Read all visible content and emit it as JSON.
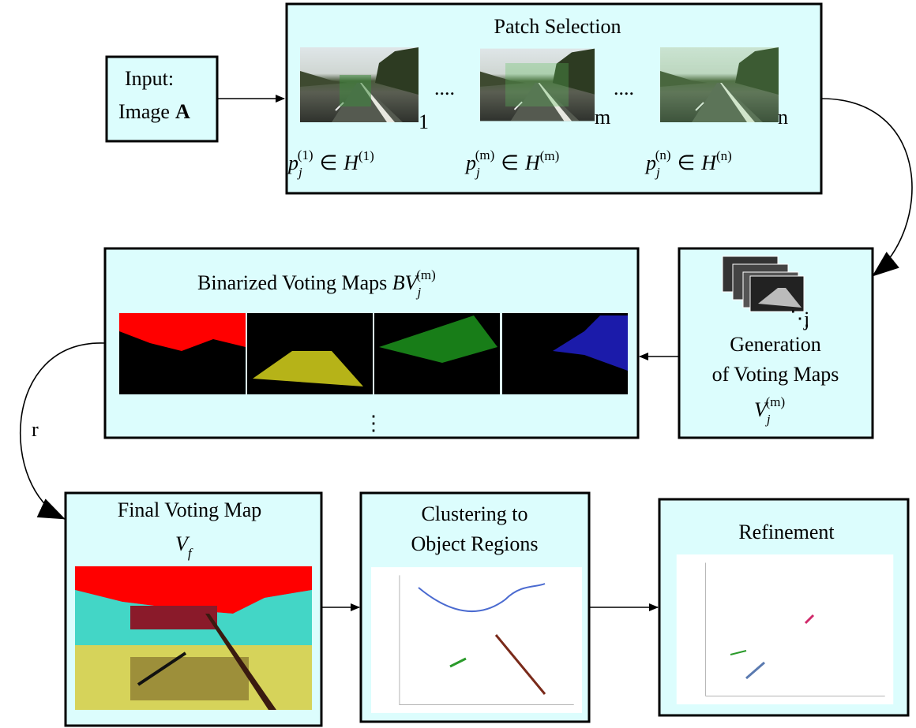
{
  "input": {
    "line1": "Input:",
    "line2": "Image",
    "line2_bold": "A"
  },
  "patch_selection": {
    "title": "Patch Selection",
    "ellipsis": [
      "....",
      "...."
    ],
    "scales": [
      {
        "label": "1",
        "formula": {
          "base": "p",
          "sub": "j",
          "sup": "(1)",
          "rel": "∈",
          "set": "H",
          "set_sup": "(1)"
        }
      },
      {
        "label": "m",
        "formula": {
          "base": "p",
          "sub": "j",
          "sup": "(m)",
          "rel": "∈",
          "set": "H",
          "set_sup": "(m)"
        }
      },
      {
        "label": "n",
        "formula": {
          "base": "p",
          "sub": "j",
          "sup": "(n)",
          "rel": "∈",
          "set": "H",
          "set_sup": "(n)"
        }
      }
    ]
  },
  "binarized": {
    "title": "Binarized Voting Maps",
    "formula": {
      "base": "BV",
      "sub": "j",
      "sup": "(m)"
    },
    "more": "⋮"
  },
  "generation": {
    "stack_dots": "⋱",
    "stack_label": "j",
    "line1": "Generation",
    "line2": "of Voting Maps",
    "formula": {
      "base": "V",
      "sub": "j",
      "sup": "(m)"
    }
  },
  "repeat_label": "r",
  "final_map": {
    "title": "Final Voting Map",
    "formula": {
      "base": "V",
      "sub": "f"
    }
  },
  "clustering": {
    "line1": "Clustering to",
    "line2": "Object Regions"
  },
  "refinement": {
    "title": "Refinement"
  }
}
